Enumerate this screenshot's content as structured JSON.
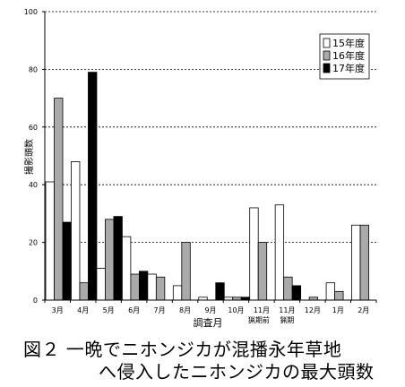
{
  "chart_data": {
    "type": "bar",
    "ylabel": "撮影頭数",
    "xlabel": "調査月",
    "ylim": [
      0,
      100
    ],
    "yticks": [
      0,
      20,
      40,
      60,
      80,
      100
    ],
    "grid": "dashed-horizontal",
    "legend_position": "top-right",
    "categories": [
      "3月",
      "4月",
      "5月",
      "6月",
      "7月",
      "8月",
      "9月",
      "10月",
      "11月",
      "11月",
      "12月",
      "1月",
      "2月"
    ],
    "category_sublabels": [
      "",
      "",
      "",
      "",
      "",
      "",
      "",
      "",
      "猟期前",
      "猟期",
      "",
      "",
      ""
    ],
    "series": [
      {
        "name": "15年度",
        "color": "#ffffff",
        "values": [
          41,
          48,
          11,
          22,
          9,
          5,
          1,
          1,
          32,
          33,
          0,
          6,
          26
        ]
      },
      {
        "name": "16年度",
        "color": "#aaaaaa",
        "values": [
          70,
          6,
          28,
          9,
          8,
          20,
          0,
          1,
          20,
          8,
          1,
          3,
          26
        ]
      },
      {
        "name": "17年度",
        "color": "#000000",
        "values": [
          27,
          79,
          29,
          10,
          null,
          null,
          6,
          1,
          null,
          5,
          null,
          null,
          null
        ]
      }
    ]
  },
  "caption": {
    "line1": "図２ 一晩でニホンジカが混播永年草地",
    "line2": "へ侵入したニホンジカの最大頭数"
  }
}
